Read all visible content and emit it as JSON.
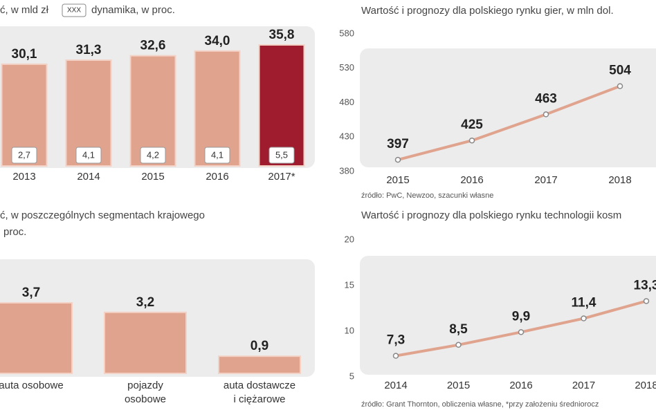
{
  "chart_data": [
    {
      "type": "bar",
      "title": "ć, w mld zł",
      "legend_box": "XXX",
      "legend_label": "dynamika, w proc.",
      "categories": [
        "2013",
        "2014",
        "2015",
        "2016",
        "2017*"
      ],
      "values": [
        30.1,
        31.3,
        32.6,
        34.0,
        35.8
      ],
      "value_labels": [
        "30,1",
        "31,3",
        "32,6",
        "34,0",
        "35,8"
      ],
      "growth": [
        2.7,
        4.1,
        4.2,
        4.1,
        5.5
      ],
      "growth_labels": [
        "2,7",
        "4,1",
        "4,2",
        "4,1",
        "5,5"
      ],
      "colors": [
        "#e0a48e",
        "#e0a48e",
        "#e0a48e",
        "#e0a48e",
        "#9e1c2e"
      ]
    },
    {
      "type": "bar",
      "title": [
        "ć, w poszczególnych segmentach krajowego",
        "proc."
      ],
      "categories": [
        [
          "auta osobowe"
        ],
        [
          "pojazdy",
          "osobowe"
        ],
        [
          "auta dostawcze",
          "i ciężarowe"
        ]
      ],
      "values": [
        3.7,
        3.2,
        0.9
      ],
      "value_labels": [
        "3,7",
        "3,2",
        "0,9"
      ],
      "color": "#e0a48e"
    },
    {
      "type": "line",
      "title": "Wartość i prognozy dla polskiego rynku gier, w mln dol.",
      "categories": [
        "2015",
        "2016",
        "2017",
        "2018"
      ],
      "values": [
        397,
        425,
        463,
        504
      ],
      "ylim": [
        380,
        580
      ],
      "yticks": [
        380,
        430,
        480,
        530,
        580
      ],
      "grid": false,
      "color": "#e0a48e",
      "source": "źródło: PwC, Newzoo, szacunki własne"
    },
    {
      "type": "line",
      "title": "Wartość i prognozy dla polskiego rynku technologii kosm",
      "categories": [
        "2014",
        "2015",
        "2016",
        "2017",
        "2018"
      ],
      "values": [
        7.3,
        8.5,
        9.9,
        11.4,
        13.3
      ],
      "value_labels": [
        "7,3",
        "8,5",
        "9,9",
        "11,4",
        "13,3"
      ],
      "ylim": [
        5,
        20
      ],
      "yticks": [
        5,
        10,
        15,
        20
      ],
      "grid": false,
      "color": "#e0a48e",
      "source": "źródło: Grant Thornton, obliczenia własne, *przy założeniu średniorocz"
    }
  ]
}
